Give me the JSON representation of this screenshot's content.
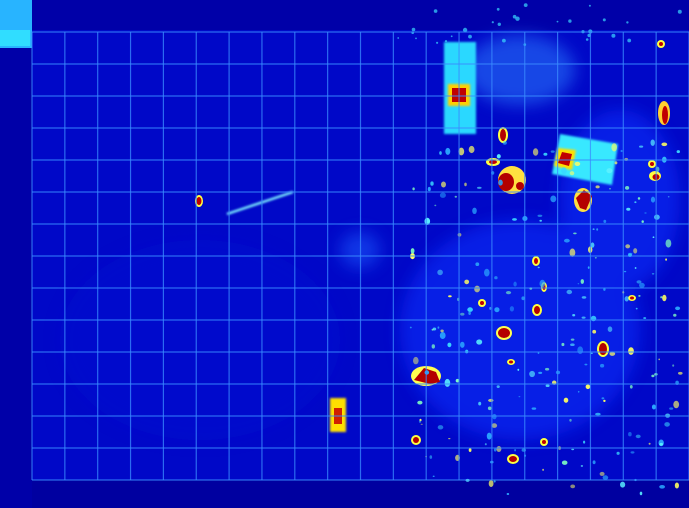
{
  "image": {
    "kind": "aerial thermal heatmap overlay",
    "colormap": [
      "#00008c",
      "#0000d8",
      "#0030ff",
      "#00a0ff",
      "#40ffff",
      "#ffff00",
      "#ff4000",
      "#b40000"
    ],
    "background_color": "#0000b8",
    "grid_color": "#3a8cff",
    "grid": {
      "visible": true,
      "columns": 20,
      "rows": 14
    }
  }
}
